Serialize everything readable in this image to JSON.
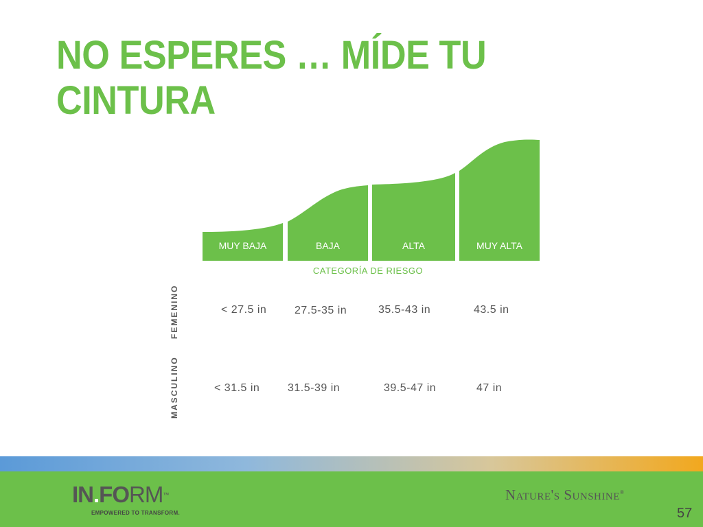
{
  "slide": {
    "title": "NO ESPERES … MÍDE TU CINTURA",
    "page_number": "57"
  },
  "chart_data": {
    "type": "table",
    "title": "",
    "axis_label": "CATEGORÍA DE RIESGO",
    "categories": [
      "MUY BAJA",
      "BAJA",
      "ALTA",
      "MUY ALTA"
    ],
    "rows": [
      {
        "name": "FEMENINO",
        "values": [
          "< 27.5 in",
          "27.5-35 in",
          "35.5-43 in",
          "43.5 in"
        ]
      },
      {
        "name": "MASCULINO",
        "values": [
          "< 31.5 in",
          "31.5-39 in",
          "39.5-47 in",
          "47 in"
        ]
      }
    ],
    "bar_color": "#6cc04a"
  },
  "footer": {
    "logo_main": "IN",
    "logo_dot": ".",
    "logo_fo": "FO",
    "logo_rm": "RM",
    "logo_tm": "™",
    "tagline": "EMPOWERED TO TRANSFORM.",
    "brand": "Nature's Sunshine",
    "brand_mark": "®"
  }
}
